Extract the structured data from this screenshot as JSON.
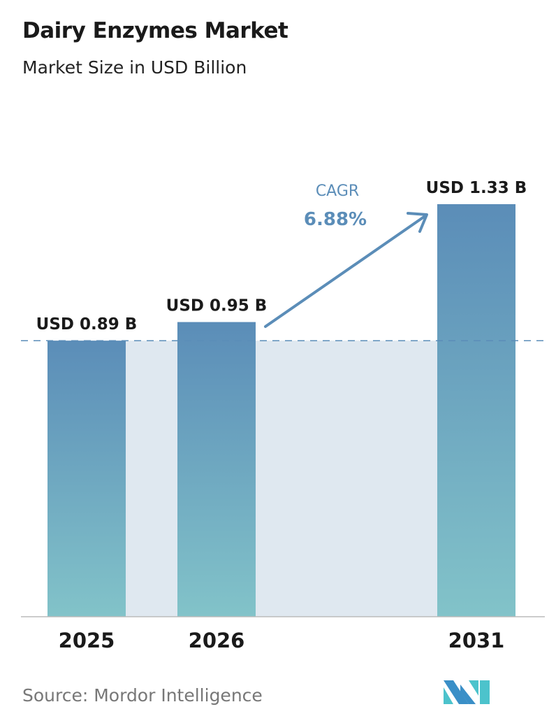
{
  "chart_data": {
    "type": "bar",
    "title": "Dairy Enzymes Market",
    "subtitle": "Market Size in USD Billion",
    "categories": [
      "2025",
      "2026",
      "2031"
    ],
    "values": [
      0.89,
      0.95,
      1.33
    ],
    "data_labels": [
      "USD 0.89 B",
      "USD 0.95 B",
      "USD 1.33 B"
    ],
    "ylim": [
      0,
      1.33
    ],
    "grid": false,
    "annotation": {
      "label": "CAGR",
      "value": "6.88%"
    },
    "colors": {
      "bar_top": "#5b8db8",
      "bar_bottom": "#82c3c9",
      "band": "#dfe8f0",
      "cagr": "#5b8db8",
      "dashed_line": "#5b8db8"
    }
  },
  "source": "Source:  Mordor Intelligence",
  "logo": "Mordor Intelligence"
}
